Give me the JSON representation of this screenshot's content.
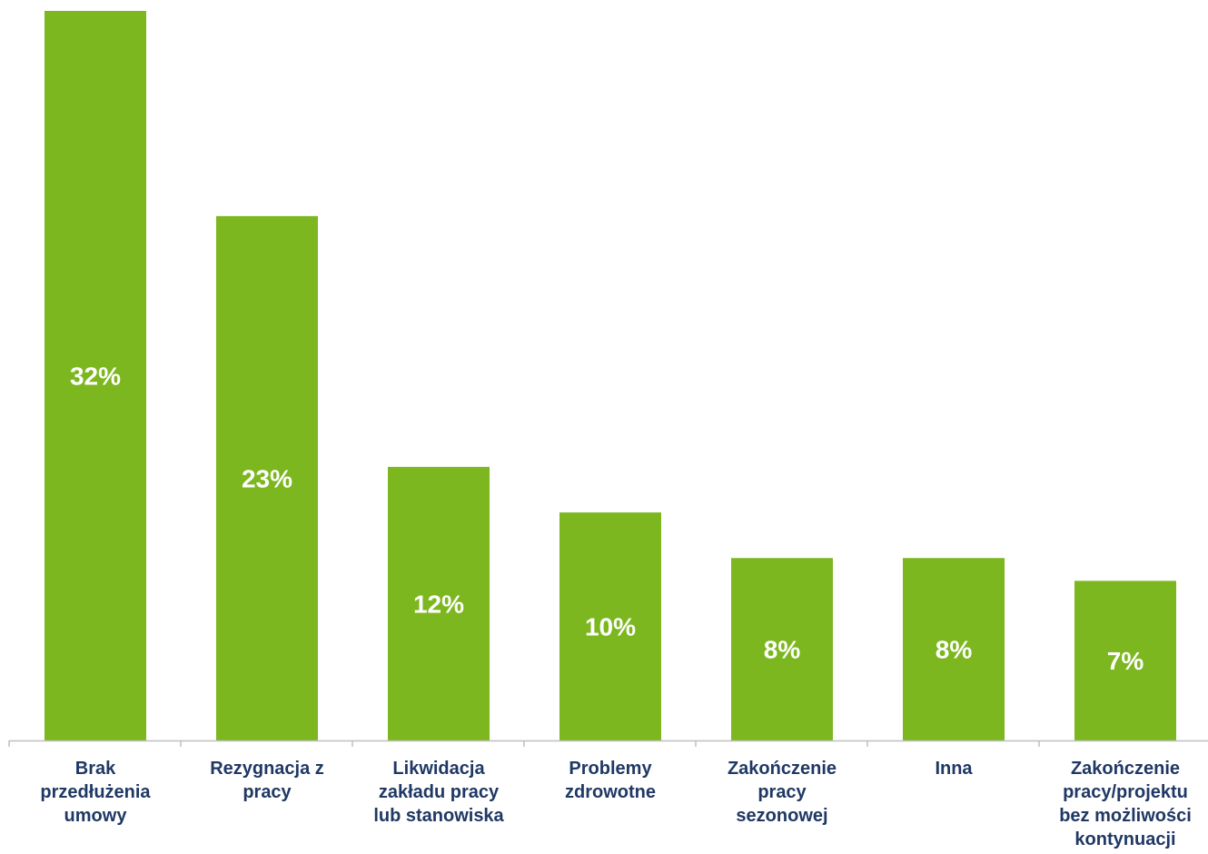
{
  "chart_data": {
    "type": "bar",
    "title": "",
    "xlabel": "",
    "ylabel": "",
    "categories": [
      [
        "Brak",
        "przedłużenia",
        "umowy"
      ],
      [
        "Rezygnacja z",
        "pracy"
      ],
      [
        "Likwidacja",
        "zakładu pracy",
        "lub stanowiska"
      ],
      [
        "Problemy",
        "zdrowotne"
      ],
      [
        "Zakończenie",
        "pracy",
        "sezonowej"
      ],
      [
        "Inna"
      ],
      [
        "Zakończenie",
        "pracy/projektu",
        "bez możliwości",
        "kontynuacji"
      ]
    ],
    "values": [
      32,
      23,
      12,
      10,
      8,
      8,
      7
    ],
    "value_labels": [
      "32%",
      "23%",
      "12%",
      "10%",
      "8%",
      "8%",
      "7%"
    ],
    "ylim": [
      0,
      32
    ],
    "grid": false,
    "legend": "none"
  },
  "colors": {
    "bar": "#7cb71f",
    "label": "#ffffff",
    "category": "#1f3864",
    "axis": "#bfbfbf"
  }
}
